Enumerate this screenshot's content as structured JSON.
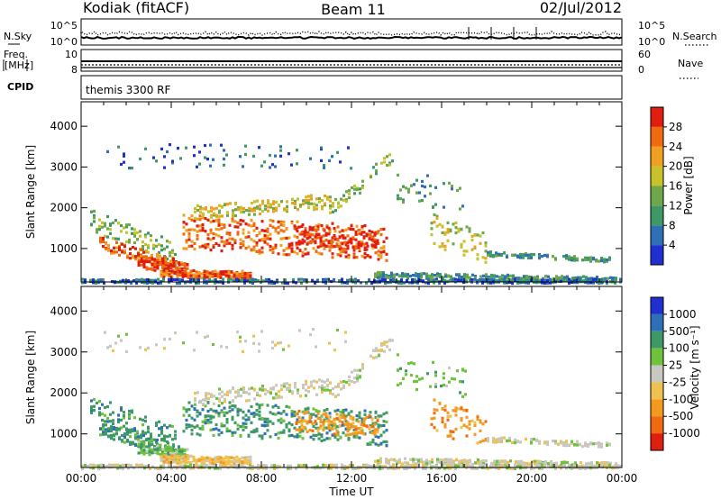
{
  "header": {
    "station": "Kodiak (fitACF)",
    "beam": "Beam 11",
    "date": "02/Jul/2012"
  },
  "top_panels": {
    "nsky_label": "N.Sky",
    "nsky_ticks": [
      "10^5",
      "10^0"
    ],
    "nsearch_label": "N.Search",
    "nsearch_ticks": [
      "10^5",
      "10^0"
    ],
    "freq_label_line1": "Freq.",
    "freq_label_line2": "[MHz]",
    "freq_ticks": [
      "10",
      "8"
    ],
    "nave_label": "Nave",
    "nave_ticks": [
      "60",
      "0"
    ],
    "cpid_label": "CPID",
    "cpid_text": "themis 3300 RF"
  },
  "colors": {
    "power_scale": [
      "#1f2fd0",
      "#2e6fb6",
      "#3d9a67",
      "#6ea84a",
      "#c7c22b",
      "#f0a020",
      "#f06a10",
      "#e01e10"
    ],
    "velocity_scale": [
      "#e01e10",
      "#f06a10",
      "#f39a1e",
      "#f0c050",
      "#c8c8c0",
      "#6ec23c",
      "#3d9a67",
      "#2e6fb6",
      "#1f2fd0"
    ]
  },
  "chart_data": [
    {
      "type": "heatmap",
      "panel": "power",
      "ylabel": "Slant Range [km]",
      "xlabel": "",
      "ylim": [
        180,
        4600
      ],
      "xlim": [
        0,
        24
      ],
      "yticks": [
        "1000",
        "2000",
        "3000",
        "4000"
      ],
      "xticks": [
        "00:00",
        "04:00",
        "08:00",
        "12:00",
        "16:00",
        "20:00",
        "00:00"
      ],
      "colorbar": {
        "label": "Power [dB]",
        "range": [
          0,
          32
        ],
        "ticks": [
          "4",
          "8",
          "12",
          "16",
          "20",
          "24",
          "28"
        ]
      }
    },
    {
      "type": "heatmap",
      "panel": "velocity",
      "ylabel": "Slant Range [km]",
      "xlabel": "Time UT",
      "ylim": [
        180,
        4600
      ],
      "xlim": [
        0,
        24
      ],
      "yticks": [
        "1000",
        "2000",
        "3000",
        "4000"
      ],
      "xticks": [
        "00:00",
        "04:00",
        "08:00",
        "12:00",
        "16:00",
        "20:00",
        "00:00"
      ],
      "colorbar": {
        "label": "Velocity [m s⁻¹]",
        "ticks": [
          "1000",
          "500",
          "100",
          "25",
          "-25",
          "-100",
          "-500",
          "-1000"
        ]
      }
    }
  ]
}
